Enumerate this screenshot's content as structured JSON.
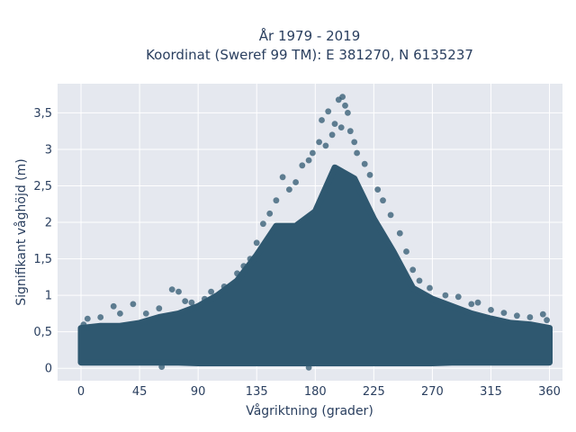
{
  "chart_data": {
    "type": "scatter",
    "title": "År 1979 - 2019",
    "subtitle": "Koordinat (Sweref 99 TM): E 381270, N 6135237",
    "xlabel": "Vågriktning (grader)",
    "ylabel": "Signifikant våghöjd (m)",
    "xlim": [
      -18,
      370
    ],
    "ylim": [
      -0.17,
      3.9
    ],
    "x_ticks": [
      0,
      45,
      90,
      135,
      180,
      225,
      270,
      315,
      360
    ],
    "x_tick_labels": [
      "0",
      "45",
      "90",
      "135",
      "180",
      "225",
      "270",
      "315",
      "360"
    ],
    "y_ticks": [
      0,
      0.5,
      1,
      1.5,
      2,
      2.5,
      3,
      3.5
    ],
    "y_tick_labels": [
      "0",
      "0,5",
      "1",
      "1,5",
      "2",
      "2,5",
      "3",
      "3,5"
    ],
    "grid": true,
    "legend": "none",
    "marker_color": "#2f5870",
    "background_color": "#e5e8ef",
    "grid_color": "#ffffff",
    "envelope": {
      "x": [
        0,
        15,
        30,
        45,
        60,
        75,
        90,
        105,
        120,
        135,
        150,
        165,
        180,
        195,
        210,
        225,
        240,
        255,
        270,
        285,
        300,
        315,
        330,
        345,
        360
      ],
      "y_min": [
        0.08,
        0.08,
        0.08,
        0.08,
        0.08,
        0.08,
        0.07,
        0.07,
        0.07,
        0.07,
        0.07,
        0.07,
        0.07,
        0.07,
        0.07,
        0.07,
        0.07,
        0.07,
        0.07,
        0.08,
        0.08,
        0.08,
        0.08,
        0.08,
        0.08
      ],
      "y_max": [
        0.55,
        0.58,
        0.58,
        0.62,
        0.7,
        0.75,
        0.85,
        1.0,
        1.2,
        1.55,
        1.95,
        1.95,
        2.15,
        2.75,
        2.6,
        2.05,
        1.6,
        1.1,
        0.95,
        0.85,
        0.75,
        0.68,
        0.62,
        0.6,
        0.55
      ]
    },
    "outliers": [
      {
        "x": 198,
        "y": 3.68
      },
      {
        "x": 201,
        "y": 3.72
      },
      {
        "x": 203,
        "y": 3.6
      },
      {
        "x": 205,
        "y": 3.5
      },
      {
        "x": 190,
        "y": 3.52
      },
      {
        "x": 185,
        "y": 3.4
      },
      {
        "x": 195,
        "y": 3.35
      },
      {
        "x": 207,
        "y": 3.25
      },
      {
        "x": 200,
        "y": 3.3
      },
      {
        "x": 193,
        "y": 3.2
      },
      {
        "x": 188,
        "y": 3.05
      },
      {
        "x": 210,
        "y": 3.1
      },
      {
        "x": 178,
        "y": 2.95
      },
      {
        "x": 175,
        "y": 2.85
      },
      {
        "x": 170,
        "y": 2.78
      },
      {
        "x": 183,
        "y": 3.1
      },
      {
        "x": 212,
        "y": 2.95
      },
      {
        "x": 218,
        "y": 2.8
      },
      {
        "x": 222,
        "y": 2.65
      },
      {
        "x": 228,
        "y": 2.45
      },
      {
        "x": 232,
        "y": 2.3
      },
      {
        "x": 238,
        "y": 2.1
      },
      {
        "x": 165,
        "y": 2.55
      },
      {
        "x": 160,
        "y": 2.45
      },
      {
        "x": 155,
        "y": 2.62
      },
      {
        "x": 150,
        "y": 2.3
      },
      {
        "x": 145,
        "y": 2.12
      },
      {
        "x": 140,
        "y": 1.98
      },
      {
        "x": 135,
        "y": 1.72
      },
      {
        "x": 130,
        "y": 1.5
      },
      {
        "x": 125,
        "y": 1.4
      },
      {
        "x": 120,
        "y": 1.3
      },
      {
        "x": 245,
        "y": 1.85
      },
      {
        "x": 250,
        "y": 1.6
      },
      {
        "x": 255,
        "y": 1.35
      },
      {
        "x": 260,
        "y": 1.2
      },
      {
        "x": 268,
        "y": 1.1
      },
      {
        "x": 280,
        "y": 1.0
      },
      {
        "x": 110,
        "y": 1.12
      },
      {
        "x": 100,
        "y": 1.05
      },
      {
        "x": 95,
        "y": 0.95
      },
      {
        "x": 85,
        "y": 0.9
      },
      {
        "x": 70,
        "y": 1.08
      },
      {
        "x": 75,
        "y": 1.05
      },
      {
        "x": 80,
        "y": 0.92
      },
      {
        "x": 60,
        "y": 0.82
      },
      {
        "x": 50,
        "y": 0.75
      },
      {
        "x": 40,
        "y": 0.88
      },
      {
        "x": 25,
        "y": 0.85
      },
      {
        "x": 30,
        "y": 0.75
      },
      {
        "x": 15,
        "y": 0.7
      },
      {
        "x": 5,
        "y": 0.68
      },
      {
        "x": 290,
        "y": 0.98
      },
      {
        "x": 300,
        "y": 0.88
      },
      {
        "x": 305,
        "y": 0.9
      },
      {
        "x": 315,
        "y": 0.8
      },
      {
        "x": 325,
        "y": 0.76
      },
      {
        "x": 335,
        "y": 0.72
      },
      {
        "x": 345,
        "y": 0.7
      },
      {
        "x": 355,
        "y": 0.74
      },
      {
        "x": 358,
        "y": 0.66
      },
      {
        "x": 2,
        "y": 0.6
      },
      {
        "x": 62,
        "y": 0.02
      },
      {
        "x": 175,
        "y": 0.01
      }
    ]
  }
}
